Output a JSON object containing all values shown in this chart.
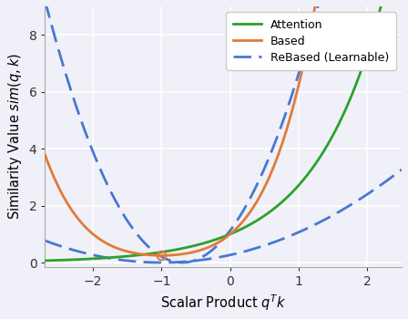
{
  "xlim": [
    -2.7,
    2.5
  ],
  "ylim": [
    -0.15,
    9.0
  ],
  "xticks": [
    -2,
    -1,
    0,
    1,
    2
  ],
  "yticks": [
    0,
    2,
    4,
    6,
    8
  ],
  "xlabel": "Scalar Product $q^Tk$",
  "ylabel": "Similarity Value $sim(q, k)$",
  "attention_color": "#2ca02c",
  "based_color": "#e07b39",
  "rebased_color": "#4878d0",
  "marker_x": -1.0,
  "marker_color": "#e07b39",
  "background_color": "#f0f0f8",
  "legend_entries": [
    "Attention",
    "Based",
    "ReBased (Learnable)"
  ],
  "line_width": 2.0,
  "rebased_upper_a": 0.0,
  "rebased_upper_b": 1.0,
  "rebased_lower_a": 0.5,
  "rebased_lower_b": 0.5
}
